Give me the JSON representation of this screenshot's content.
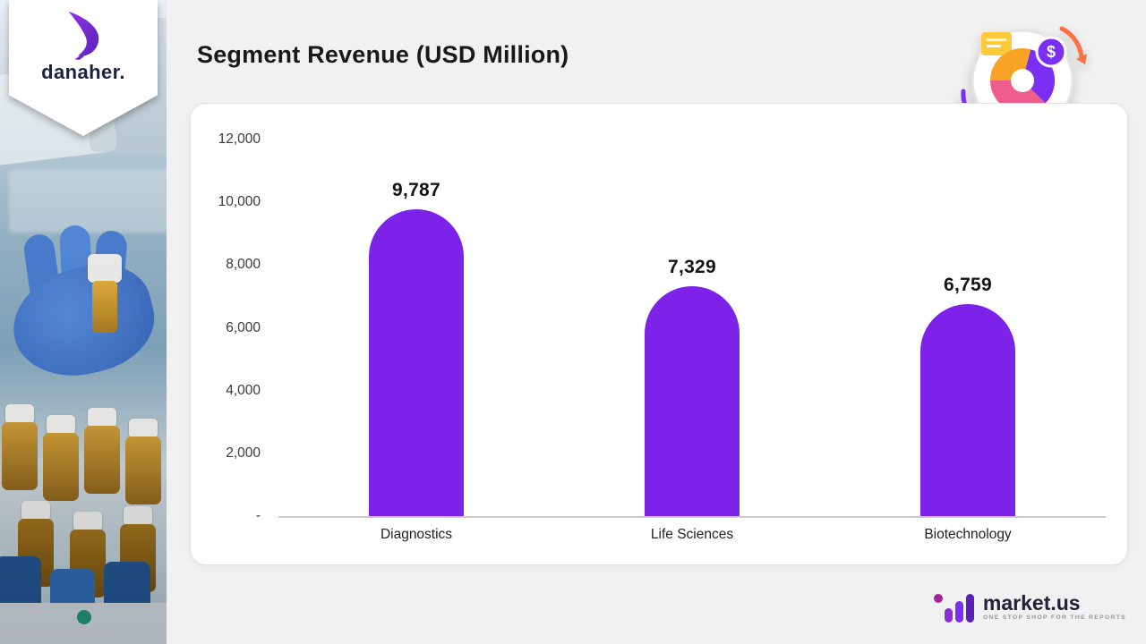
{
  "header": {
    "title": "Segment Revenue (USD Million)"
  },
  "sidebar": {
    "brand_name": "danaher."
  },
  "chart_data": {
    "type": "bar",
    "title": "Segment Revenue (USD Million)",
    "categories": [
      "Diagnostics",
      "Life Sciences",
      "Biotechnology"
    ],
    "values": [
      9787,
      7329,
      6759
    ],
    "value_labels": [
      "9,787",
      "7,329",
      "6,759"
    ],
    "xlabel": "",
    "ylabel": "",
    "ylim": [
      0,
      12000
    ],
    "y_tick_interval": 2000,
    "y_tick_labels": [
      "12,000",
      "10,000",
      "8,000",
      "6,000",
      "4,000",
      "2,000",
      "-"
    ],
    "grid": false,
    "legend": false,
    "bar_color": "#7c22e9"
  },
  "footer": {
    "brand": "market.us",
    "tagline": "ONE STOP SHOP FOR THE REPORTS"
  },
  "colors": {
    "accent_purple": "#7c22e9",
    "background": "#f1f1f1",
    "card": "#ffffff"
  }
}
